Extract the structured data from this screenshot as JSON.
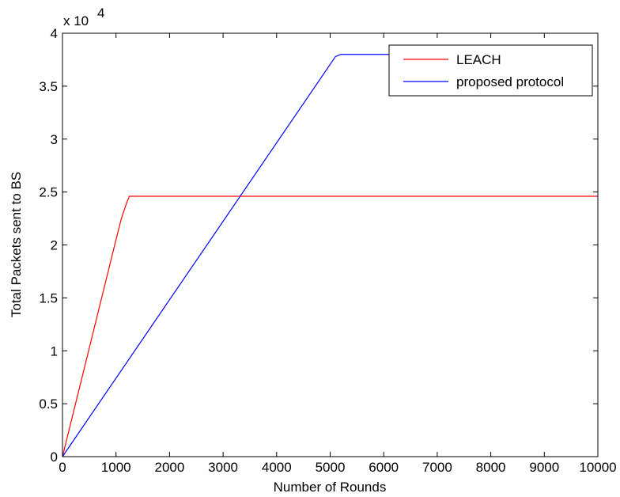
{
  "chart_data": {
    "type": "line",
    "title": "",
    "xlabel": "Number of Rounds",
    "ylabel": "Total Packets sent to BS",
    "y_multiplier_label": "x 10",
    "y_multiplier_exponent": "4",
    "xlim": [
      0,
      10000
    ],
    "ylim": [
      0,
      4
    ],
    "x_ticks": [
      0,
      1000,
      2000,
      3000,
      4000,
      5000,
      6000,
      7000,
      8000,
      9000,
      10000
    ],
    "x_tick_labels": [
      "0",
      "1000",
      "2000",
      "3000",
      "4000",
      "5000",
      "6000",
      "7000",
      "8000",
      "9000",
      "10000"
    ],
    "y_ticks": [
      0,
      0.5,
      1,
      1.5,
      2,
      2.5,
      3,
      3.5,
      4
    ],
    "y_tick_labels": [
      "0",
      "0.5",
      "1",
      "1.5",
      "2",
      "2.5",
      "3",
      "3.5",
      "4"
    ],
    "grid": false,
    "legend_position": "top-right",
    "series": [
      {
        "name": "LEACH",
        "color": "#ff0000",
        "x": [
          0,
          1000,
          1100,
          1200,
          1250,
          10000
        ],
        "y": [
          0,
          2.05,
          2.25,
          2.4,
          2.46,
          2.46
        ]
      },
      {
        "name": "proposed protocol",
        "color": "#0000ff",
        "x": [
          0,
          5100,
          5200,
          5300,
          6300
        ],
        "y": [
          0,
          3.78,
          3.8,
          3.8,
          3.8
        ]
      }
    ]
  }
}
